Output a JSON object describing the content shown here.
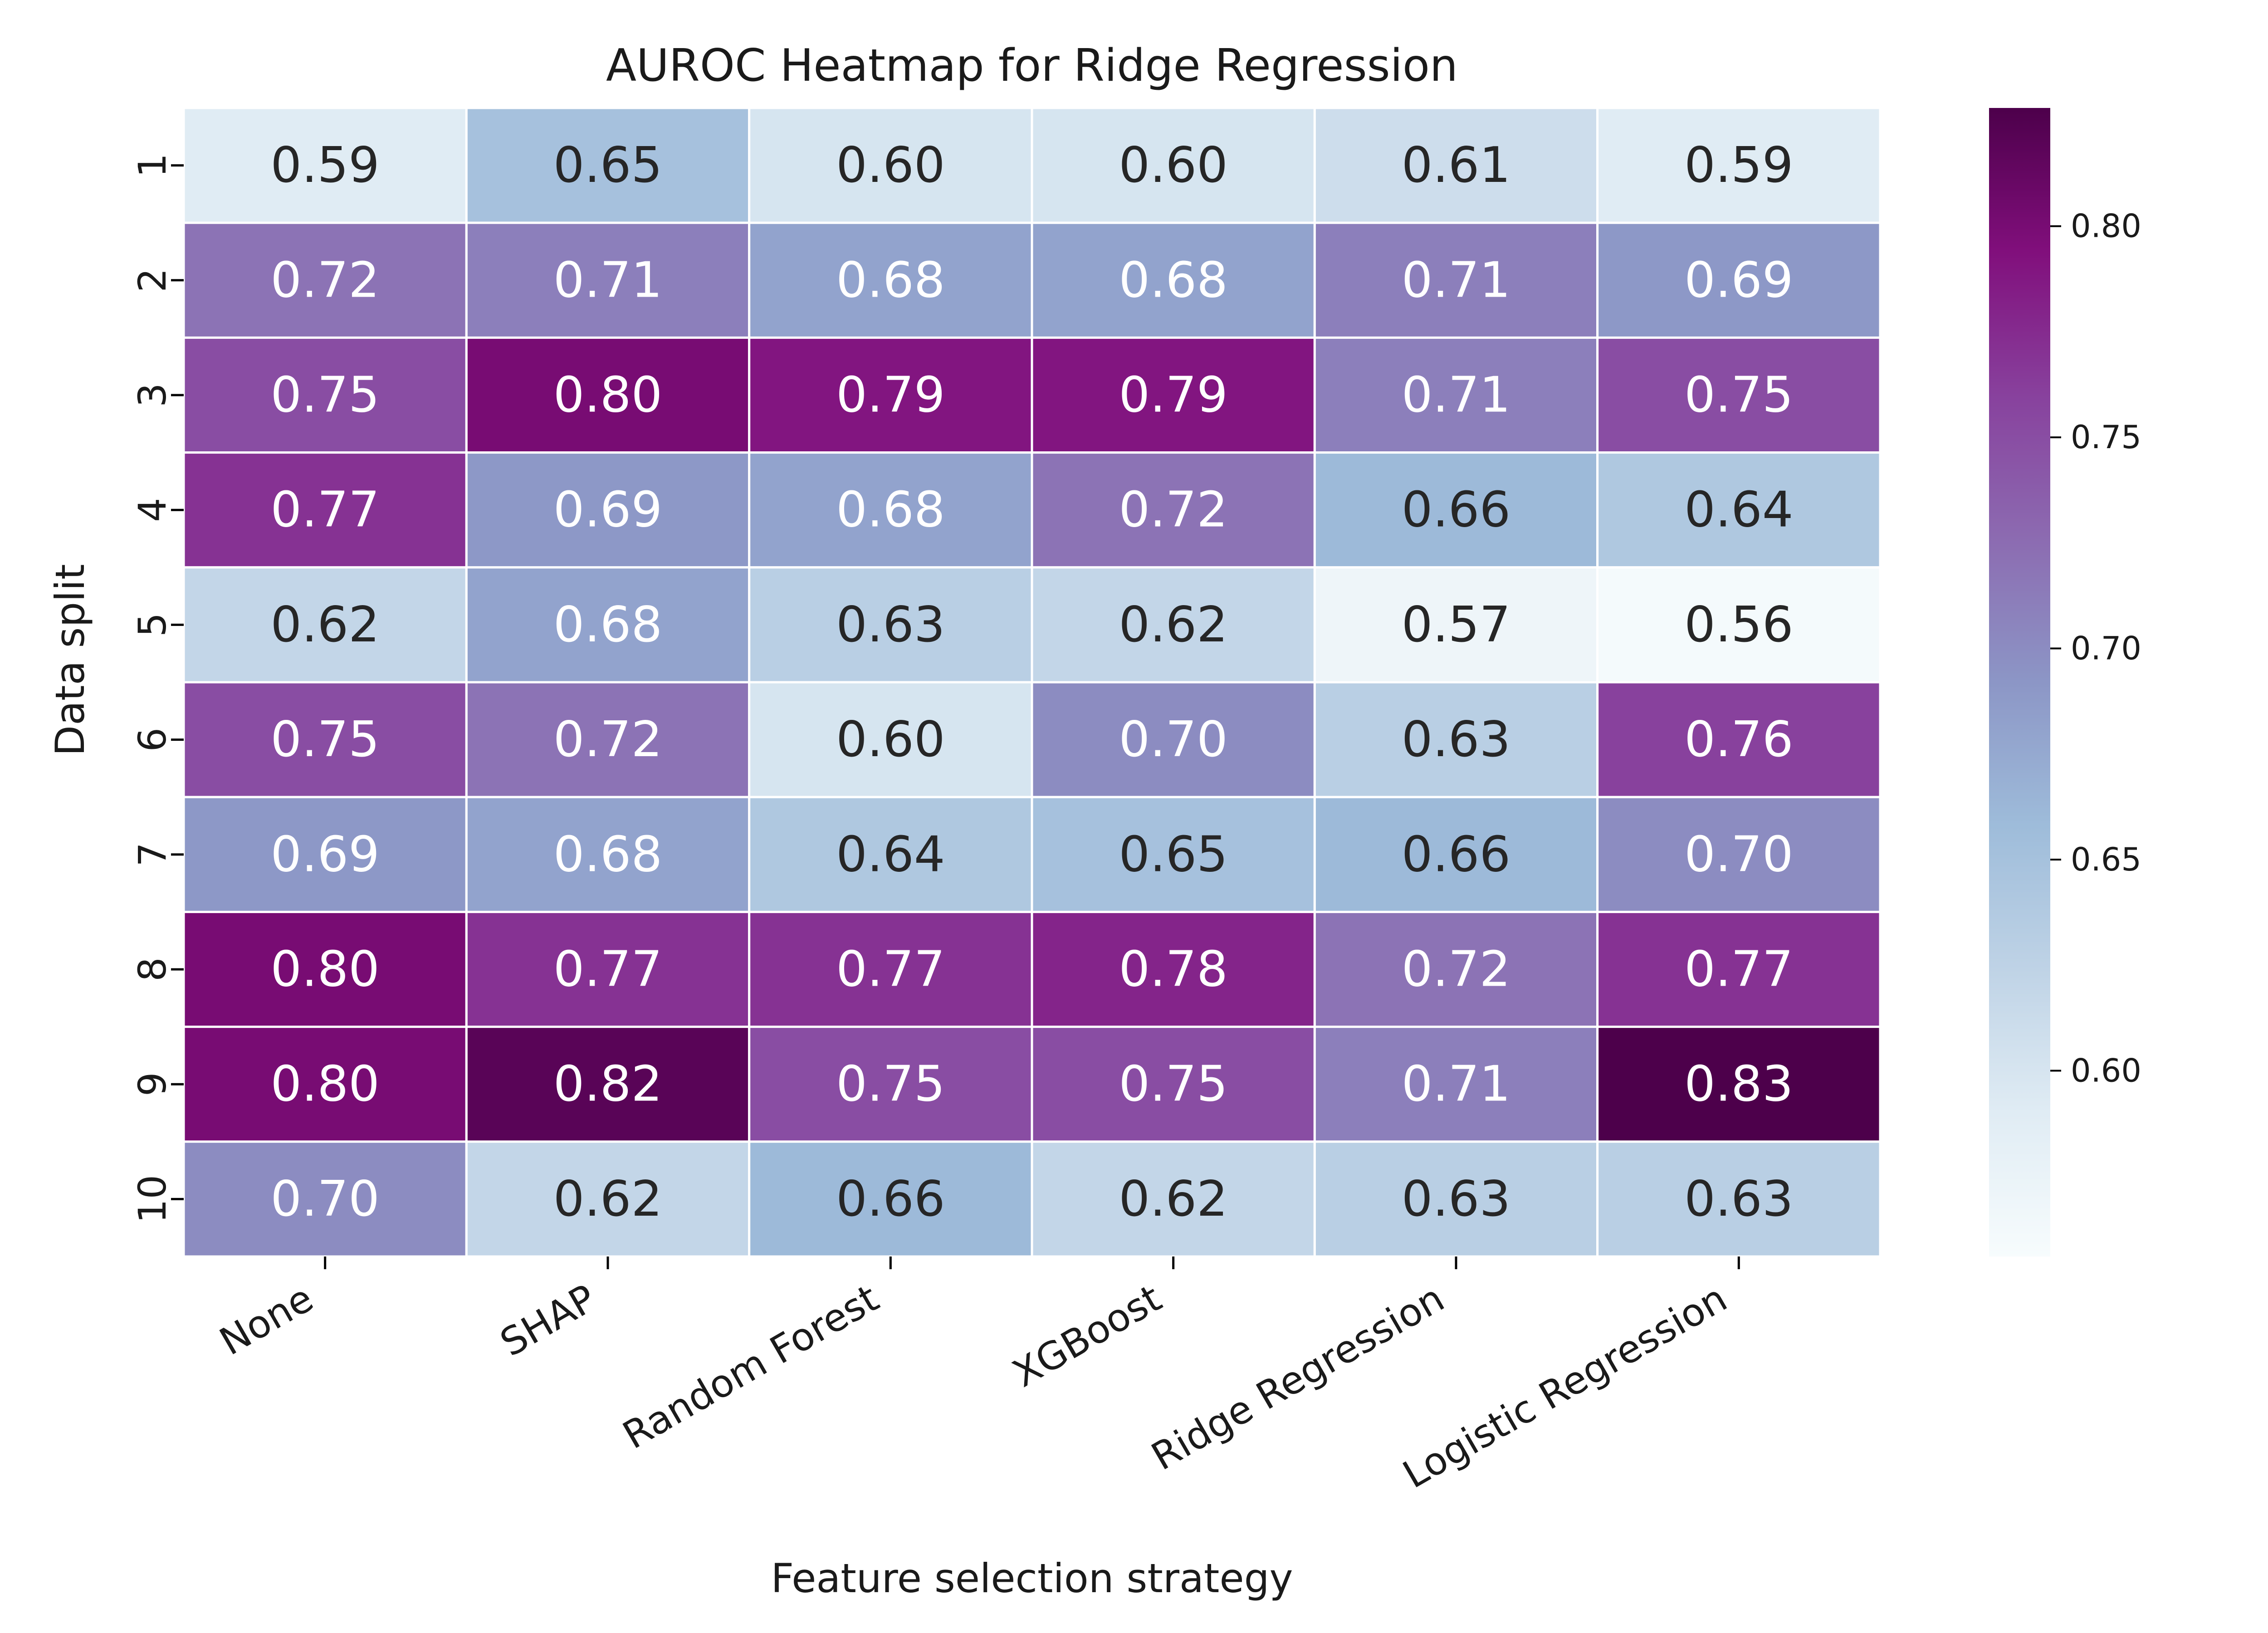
{
  "chart_data": {
    "type": "heatmap",
    "title": "AUROC Heatmap for Ridge Regression",
    "xlabel": "Feature selection strategy",
    "ylabel": "Data split",
    "x_categories": [
      "None",
      "SHAP",
      "Random Forest",
      "XGBoost",
      "Ridge Regression",
      "Logistic Regression"
    ],
    "y_categories": [
      "1",
      "2",
      "3",
      "4",
      "5",
      "6",
      "7",
      "8",
      "9",
      "10"
    ],
    "values": [
      [
        0.59,
        0.65,
        0.6,
        0.6,
        0.61,
        0.59
      ],
      [
        0.72,
        0.71,
        0.68,
        0.68,
        0.71,
        0.69
      ],
      [
        0.75,
        0.8,
        0.79,
        0.79,
        0.71,
        0.75
      ],
      [
        0.77,
        0.69,
        0.68,
        0.72,
        0.66,
        0.64
      ],
      [
        0.62,
        0.68,
        0.63,
        0.62,
        0.57,
        0.56
      ],
      [
        0.75,
        0.72,
        0.6,
        0.7,
        0.63,
        0.76
      ],
      [
        0.69,
        0.68,
        0.64,
        0.65,
        0.66,
        0.7
      ],
      [
        0.8,
        0.77,
        0.77,
        0.78,
        0.72,
        0.77
      ],
      [
        0.8,
        0.82,
        0.75,
        0.75,
        0.71,
        0.83
      ],
      [
        0.7,
        0.62,
        0.66,
        0.62,
        0.63,
        0.63
      ]
    ],
    "value_format": "0.00",
    "colormap": "BuPu",
    "colormap_stops": [
      "#f7fcfd",
      "#e0ecf4",
      "#bfd3e6",
      "#9ebcda",
      "#8c96c6",
      "#8c6bb1",
      "#88419d",
      "#810f7c",
      "#4d004b"
    ],
    "colorbar": {
      "range": [
        0.556,
        0.828
      ],
      "ticks": [
        0.6,
        0.65,
        0.7,
        0.75,
        0.8
      ],
      "tick_labels": [
        "0.60",
        "0.65",
        "0.70",
        "0.75",
        "0.80"
      ]
    },
    "annotation_colors": {
      "dark": "#262626",
      "light": "#ffffff"
    },
    "cell_border_color": "#ffffff"
  }
}
